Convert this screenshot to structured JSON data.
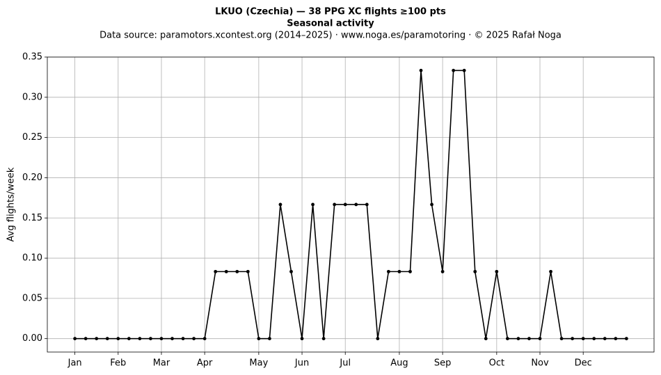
{
  "chart_data": {
    "type": "line",
    "title": "LKUO (Czechia)  —  38 PPG XC flights ≥100 pts",
    "subtitle": "Seasonal activity",
    "source": "Data source: paramotors.xcontest.org (2014–2025)  ·  www.noga.es/paramotoring  ·  © 2025 Rafał Noga",
    "y_label": "Avg flights/week",
    "x": [
      1,
      2,
      3,
      4,
      5,
      6,
      7,
      8,
      9,
      10,
      11,
      12,
      13,
      14,
      15,
      16,
      17,
      18,
      19,
      20,
      21,
      22,
      23,
      24,
      25,
      26,
      27,
      28,
      29,
      30,
      31,
      32,
      33,
      34,
      35,
      36,
      37,
      38,
      39,
      40,
      41,
      42,
      43,
      44,
      45,
      46,
      47,
      48,
      49,
      50,
      51,
      52
    ],
    "series": [
      {
        "name": "Avg flights/week",
        "color": "#000000",
        "values": [
          0,
          0,
          0,
          0,
          0,
          0,
          0,
          0,
          0,
          0,
          0,
          0,
          0,
          0.0833,
          0.0833,
          0.0833,
          0.0833,
          0,
          0,
          0.1667,
          0.0833,
          0,
          0.1667,
          0,
          0.1667,
          0.1667,
          0.1667,
          0.1667,
          0,
          0.0833,
          0.0833,
          0.0833,
          0.3333,
          0.1667,
          0.0833,
          0.3333,
          0.3333,
          0.0833,
          0,
          0.0833,
          0,
          0,
          0,
          0,
          0.0833,
          0,
          0,
          0,
          0,
          0,
          0,
          0
        ]
      }
    ],
    "xlim": [
      -1.55,
      54.55
    ],
    "xticks": [
      {
        "value": 1,
        "label": "Jan"
      },
      {
        "value": 5,
        "label": "Feb"
      },
      {
        "value": 9,
        "label": "Mar"
      },
      {
        "value": 13,
        "label": "Apr"
      },
      {
        "value": 18,
        "label": "May"
      },
      {
        "value": 22,
        "label": "Jun"
      },
      {
        "value": 26,
        "label": "Jul"
      },
      {
        "value": 31,
        "label": "Aug"
      },
      {
        "value": 35,
        "label": "Sep"
      },
      {
        "value": 40,
        "label": "Oct"
      },
      {
        "value": 44,
        "label": "Nov"
      },
      {
        "value": 48,
        "label": "Dec"
      }
    ],
    "ylim": [
      -0.0167,
      0.35
    ],
    "yticks": [
      {
        "value": 0,
        "label": "0.00"
      },
      {
        "value": 0.05,
        "label": "0.05"
      },
      {
        "value": 0.1,
        "label": "0.10"
      },
      {
        "value": 0.15,
        "label": "0.15"
      },
      {
        "value": 0.2,
        "label": "0.20"
      },
      {
        "value": 0.25,
        "label": "0.25"
      },
      {
        "value": 0.3,
        "label": "0.30"
      },
      {
        "value": 0.35,
        "label": "0.35"
      }
    ],
    "grid": true
  }
}
